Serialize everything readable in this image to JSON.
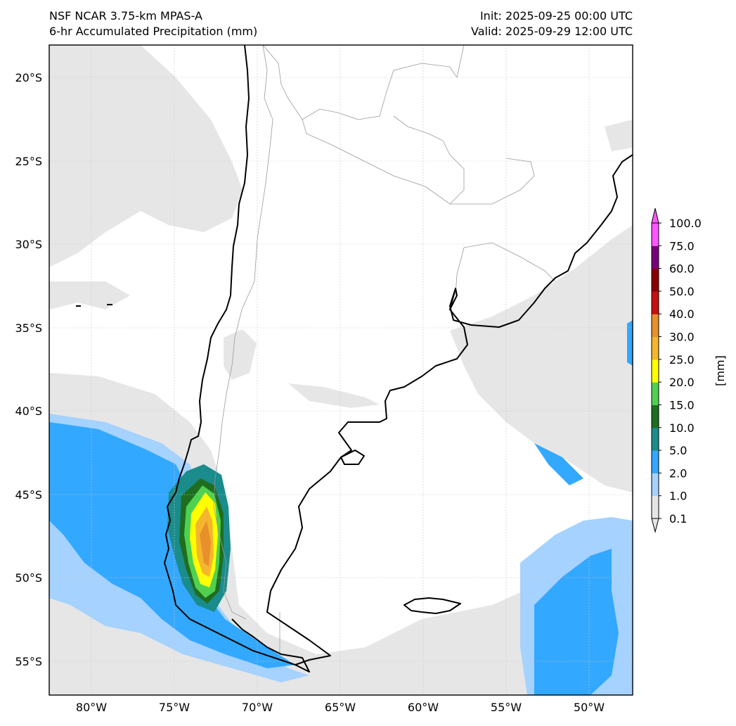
{
  "header": {
    "model": "NSF NCAR 3.75-km MPAS-A",
    "field": "6-hr Accumulated Precipitation (mm)",
    "init": "Init: 2025-09-25 00:00 UTC",
    "valid": "Valid: 2025-09-29 12:00 UTC"
  },
  "axes": {
    "lon_labels": [
      "80°W",
      "75°W",
      "70°W",
      "65°W",
      "60°W",
      "55°W",
      "50°W"
    ],
    "lat_labels": [
      "20°S",
      "25°S",
      "30°S",
      "35°S",
      "40°S",
      "45°S",
      "50°S",
      "55°S"
    ],
    "lon_range": [
      -82.5,
      -47.5
    ],
    "lat_range": [
      -57.0,
      -18.0
    ]
  },
  "colorbar": {
    "unit_label": "[mm]",
    "levels": [
      "0.1",
      "1.0",
      "2.0",
      "5.0",
      "10.0",
      "15.0",
      "20.0",
      "25.0",
      "30.0",
      "40.0",
      "50.0",
      "60.0",
      "75.0",
      "100.0"
    ],
    "colors": [
      "#e6e6e6",
      "#a5d2ff",
      "#33a8ff",
      "#1a8c8c",
      "#1f6e1f",
      "#4fd14f",
      "#ffff00",
      "#f5b52e",
      "#e8902a",
      "#c81010",
      "#8b0000",
      "#7a007a",
      "#ff55ff"
    ],
    "extend": "both"
  },
  "styles": {
    "coast_color": "#000000",
    "border_color": "#9a9a9a",
    "frame_color": "#000000"
  }
}
